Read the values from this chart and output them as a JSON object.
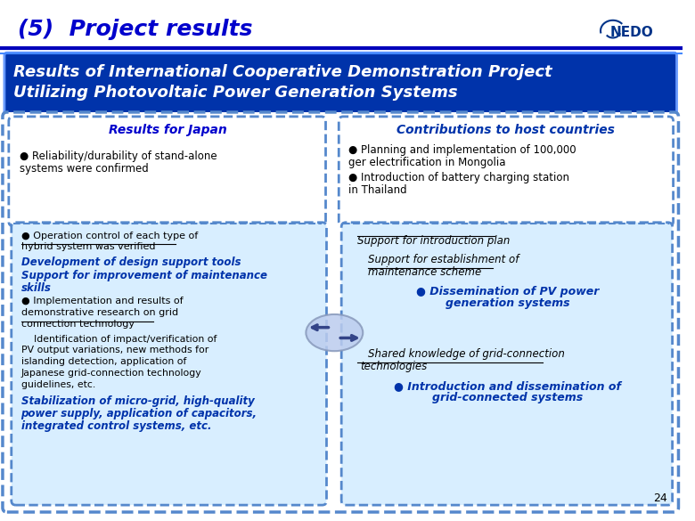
{
  "title": "(5)  Project results",
  "title_color": "#0000CC",
  "bg_color": "#FFFFFF",
  "blue_line_color": "#0000BB",
  "banner_bg": "#0033AA",
  "banner_border": "#6699FF",
  "banner_text_color": "#FFFFFF",
  "left_box_title": "Results for Japan",
  "left_box_title_color": "#0000CC",
  "right_box_title": "Contributions to host countries",
  "right_box_title_color": "#0033AA",
  "page_number": "24",
  "dashed_color": "#5588CC",
  "inner_box_bg": "#D8EEFF",
  "arrow_color": "#8899CC"
}
